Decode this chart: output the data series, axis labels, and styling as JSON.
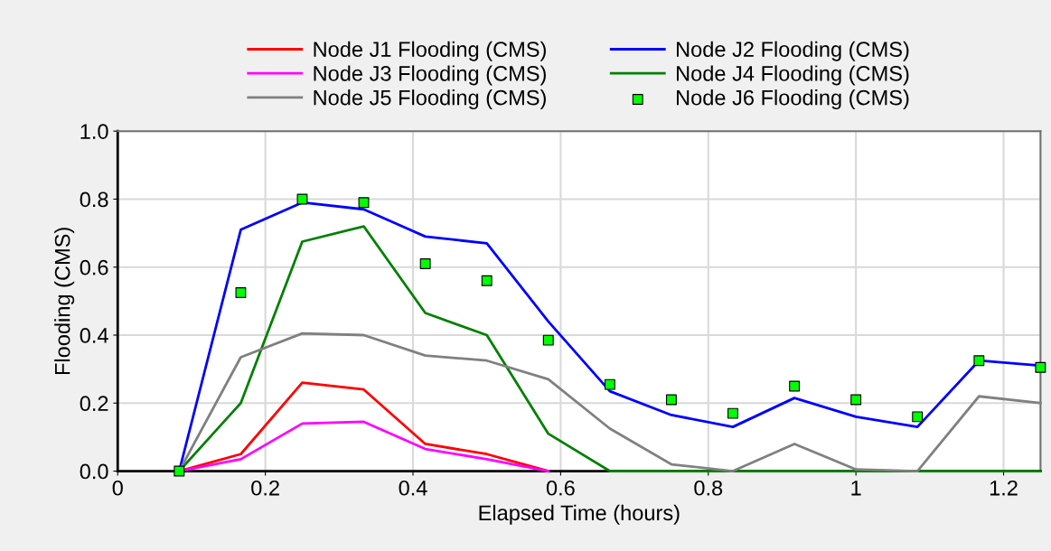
{
  "chart_data": {
    "type": "line",
    "xlabel": "Elapsed Time (hours)",
    "ylabel": "Flooding (CMS)",
    "x": [
      0.0833,
      0.1667,
      0.25,
      0.3333,
      0.4167,
      0.5,
      0.5833,
      0.6667,
      0.75,
      0.8333,
      0.9167,
      1.0,
      1.0833,
      1.1667,
      1.25
    ],
    "series": [
      {
        "name": "Node J1 Flooding (CMS)",
        "color": "#ff0000",
        "values": [
          0,
          0.05,
          0.26,
          0.24,
          0.08,
          0.05,
          0,
          null,
          null,
          null,
          null,
          null,
          null,
          null,
          null
        ]
      },
      {
        "name": "Node J2 Flooding (CMS)",
        "color": "#0000ff",
        "values": [
          0,
          0.71,
          0.79,
          0.77,
          0.69,
          0.67,
          0.44,
          0.235,
          0.165,
          0.13,
          0.215,
          0.16,
          0.13,
          0.325,
          0.31
        ]
      },
      {
        "name": "Node J3 Flooding (CMS)",
        "color": "#ff00ff",
        "values": [
          0,
          0.035,
          0.14,
          0.145,
          0.065,
          0.035,
          0,
          null,
          null,
          null,
          null,
          null,
          null,
          null,
          null
        ]
      },
      {
        "name": "Node J4 Flooding (CMS)",
        "color": "#008000",
        "values": [
          0,
          0.2,
          0.675,
          0.72,
          0.465,
          0.4,
          0.11,
          0,
          0,
          0,
          0,
          0,
          0,
          0,
          0
        ]
      },
      {
        "name": "Node J5 Flooding (CMS)",
        "color": "#808080",
        "values": [
          0,
          0.335,
          0.405,
          0.4,
          0.34,
          0.325,
          0.27,
          0.125,
          0.02,
          0,
          0.08,
          0.005,
          0,
          0.22,
          0.2
        ]
      },
      {
        "name": "Node J6 Flooding (CMS)",
        "color": "#00ff00",
        "type": "scatter",
        "marker": "square",
        "values": [
          0,
          0.525,
          0.8,
          0.79,
          0.61,
          0.56,
          0.385,
          0.255,
          0.21,
          0.17,
          0.25,
          0.21,
          0.16,
          0.325,
          0.305
        ]
      }
    ],
    "xlim": [
      0,
      1.25
    ],
    "xticks": [
      0,
      0.2,
      0.4,
      0.6,
      0.8,
      1,
      1.2
    ],
    "ylim": [
      0,
      1.0
    ],
    "yticks": [
      {
        "value": 0,
        "label": "0.0"
      },
      {
        "value": 0.2,
        "label": "0.2"
      },
      {
        "value": 0.4,
        "label": "0.4"
      },
      {
        "value": 0.6,
        "label": "0.6"
      },
      {
        "value": 0.8,
        "label": "0.8"
      },
      {
        "value": 1.0,
        "label": "1.0"
      }
    ],
    "grid": true,
    "legend": "top"
  }
}
